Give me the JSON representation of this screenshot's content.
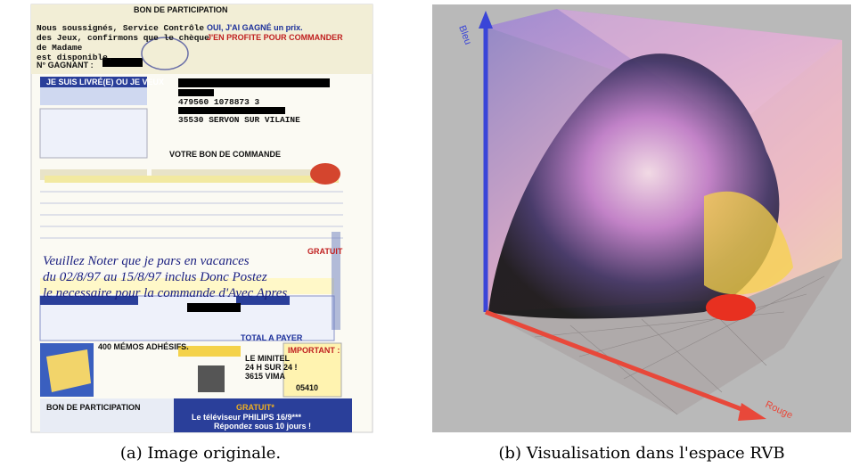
{
  "figure": {
    "panels": [
      {
        "caption": "(a) Image originale.",
        "texts": [
          "BON DE PARTICIPATION",
          "Nous soussignés, Service Contrôle",
          "des Jeux, confirmons que le chèque",
          "de Madame",
          "est disponible.",
          "N° GAGNANT :",
          "OUI, J'AI GAGNÉ un prix.",
          "J'EN PROFITE POUR COMMANDER",
          "JE SUIS LIVRÉ(E) OU JE VEUX",
          "479560      1078873     3",
          "35530 SERVON SUR VILAINE",
          "VOTRE BON DE COMMANDE",
          "Veuillez Noter que je pars en vacances",
          "du 02/8/97 au 15/8/97 inclus Donc Postez",
          "le necessaire pour la commande d'Avec Apres",
          "GRATUIT",
          "TOTAL A PAYER",
          "400 MÉMOS ADHÉSIFS.",
          "LE MINITEL",
          "24 H SUR 24 !",
          "3615 VIMA",
          "IMPORTANT :",
          "05410",
          "BON DE PARTICIPATION",
          "GRATUIT*",
          "Le téléviseur PHILIPS 16/9***",
          "Répondez sous 10 jours !"
        ]
      },
      {
        "caption": "(b) Visualisation dans l'espace RVB",
        "axis_labels": [
          "Bleu",
          "Rouge"
        ]
      }
    ]
  }
}
